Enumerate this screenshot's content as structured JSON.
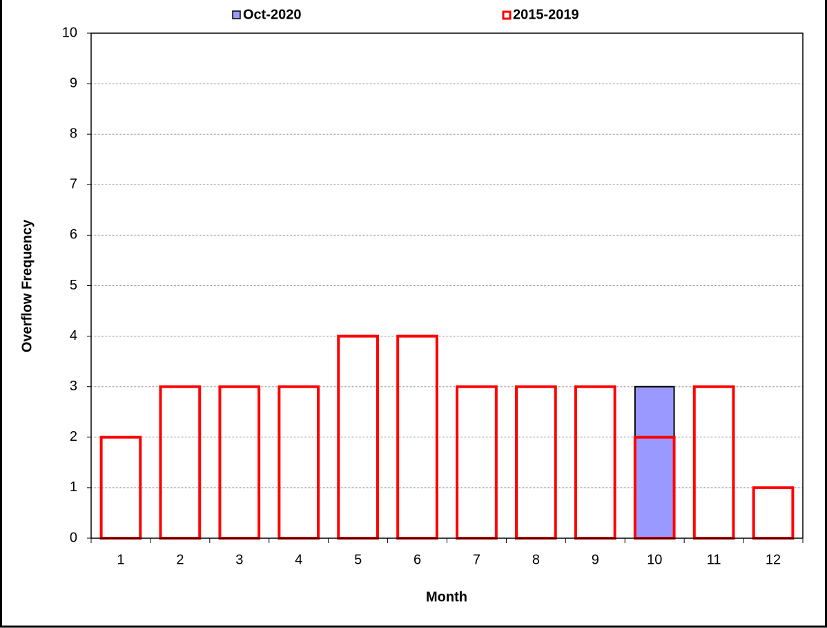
{
  "chart_data": {
    "type": "bar",
    "x_label": "Month",
    "y_label": "Overflow Frequency",
    "categories": [
      "1",
      "2",
      "3",
      "4",
      "5",
      "6",
      "7",
      "8",
      "9",
      "10",
      "11",
      "12"
    ],
    "series": [
      {
        "name": "Oct-2020",
        "color": "#9999ff",
        "values": [
          null,
          null,
          null,
          null,
          null,
          null,
          null,
          null,
          null,
          3,
          null,
          null
        ]
      },
      {
        "name": "2015-2019",
        "color": "#ff0000",
        "values": [
          2,
          3,
          3,
          3,
          4,
          4,
          3,
          3,
          3,
          2,
          3,
          1
        ]
      }
    ],
    "ylim": [
      0,
      10
    ],
    "yticks": [
      0,
      1,
      2,
      3,
      4,
      5,
      6,
      7,
      8,
      9,
      10
    ],
    "grid": true,
    "legend": "top"
  }
}
